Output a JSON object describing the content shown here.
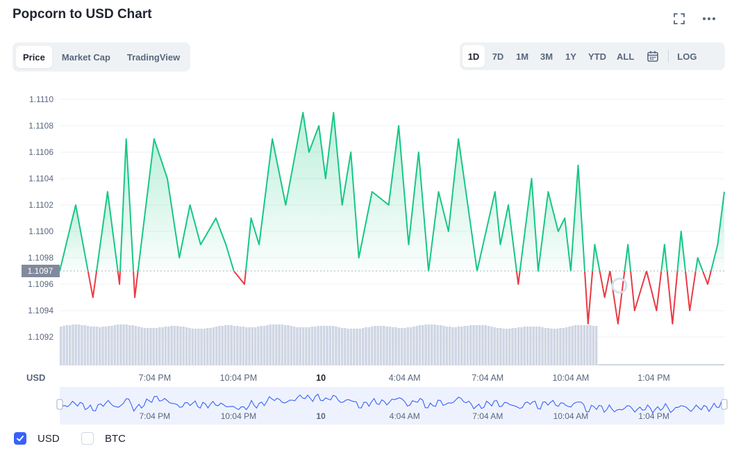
{
  "title": "Popcorn to USD Chart",
  "header_icons": [
    "fullscreen-icon",
    "more-icon"
  ],
  "tabs": [
    {
      "label": "Price",
      "active": true
    },
    {
      "label": "Market Cap",
      "active": false
    },
    {
      "label": "TradingView",
      "active": false
    }
  ],
  "ranges": [
    {
      "label": "1D",
      "active": true
    },
    {
      "label": "7D",
      "active": false
    },
    {
      "label": "1M",
      "active": false
    },
    {
      "label": "3M",
      "active": false
    },
    {
      "label": "1Y",
      "active": false
    },
    {
      "label": "YTD",
      "active": false
    },
    {
      "label": "ALL",
      "active": false
    }
  ],
  "log_label": "LOG",
  "currency_label": "USD",
  "legend": [
    {
      "label": "USD",
      "checked": true
    },
    {
      "label": "BTC",
      "checked": false
    }
  ],
  "colors": {
    "up": "#16c784",
    "down": "#ea3943",
    "volume": "#cfd6e4",
    "navigator_line": "#3861fb",
    "reference_tag": "#808a9d",
    "checkbox_on": "#3861fb"
  },
  "chart_data": {
    "type": "line",
    "title": "Popcorn to USD Chart",
    "ylabel": "USD",
    "ylim": [
      1.1091,
      1.1111
    ],
    "yticks": [
      "1.1110",
      "1.1108",
      "1.1106",
      "1.1104",
      "1.1102",
      "1.1100",
      "1.1098",
      "1.1096",
      "1.1094",
      "1.1092"
    ],
    "reference_price": 1.1097,
    "reference_label": "1.1097",
    "xticks": [
      {
        "label": "7:04 PM",
        "pos": 0.143,
        "bold": false
      },
      {
        "label": "10:04 PM",
        "pos": 0.269,
        "bold": false
      },
      {
        "label": "10",
        "pos": 0.393,
        "bold": true
      },
      {
        "label": "4:04 AM",
        "pos": 0.519,
        "bold": false
      },
      {
        "label": "7:04 AM",
        "pos": 0.644,
        "bold": false
      },
      {
        "label": "10:04 AM",
        "pos": 0.769,
        "bold": false
      },
      {
        "label": "1:04 PM",
        "pos": 0.894,
        "bold": false
      }
    ],
    "series": [
      {
        "name": "Price (USD)",
        "x": [
          0,
          0.024,
          0.05,
          0.072,
          0.09,
          0.1,
          0.113,
          0.125,
          0.142,
          0.162,
          0.18,
          0.196,
          0.212,
          0.235,
          0.25,
          0.262,
          0.278,
          0.288,
          0.3,
          0.32,
          0.34,
          0.366,
          0.375,
          0.39,
          0.4,
          0.412,
          0.425,
          0.438,
          0.45,
          0.47,
          0.495,
          0.51,
          0.525,
          0.54,
          0.555,
          0.57,
          0.585,
          0.6,
          0.628,
          0.655,
          0.663,
          0.675,
          0.69,
          0.71,
          0.72,
          0.735,
          0.75,
          0.76,
          0.769,
          0.78,
          0.795,
          0.805,
          0.82,
          0.828,
          0.84,
          0.855,
          0.865,
          0.883,
          0.898,
          0.91,
          0.922,
          0.935,
          0.948,
          0.96,
          0.975,
          0.99,
          1.0
        ],
        "values": [
          1.1097,
          1.1102,
          1.1095,
          1.1103,
          1.1096,
          1.1107,
          1.1095,
          1.11,
          1.1107,
          1.1104,
          1.1098,
          1.1102,
          1.1099,
          1.1101,
          1.1099,
          1.1097,
          1.1096,
          1.1101,
          1.1099,
          1.1107,
          1.1102,
          1.1109,
          1.1106,
          1.1108,
          1.1104,
          1.1109,
          1.1102,
          1.1106,
          1.1098,
          1.1103,
          1.1102,
          1.1108,
          1.1099,
          1.1106,
          1.1097,
          1.1103,
          1.11,
          1.1107,
          1.1097,
          1.1103,
          1.1099,
          1.1102,
          1.1096,
          1.1104,
          1.1097,
          1.1103,
          1.11,
          1.1101,
          1.1097,
          1.1105,
          1.1093,
          1.1099,
          1.1095,
          1.1097,
          1.1093,
          1.1099,
          1.1094,
          1.1097,
          1.1094,
          1.1099,
          1.1093,
          1.11,
          1.1094,
          1.1098,
          1.1096,
          1.1099,
          1.1103
        ]
      }
    ]
  }
}
